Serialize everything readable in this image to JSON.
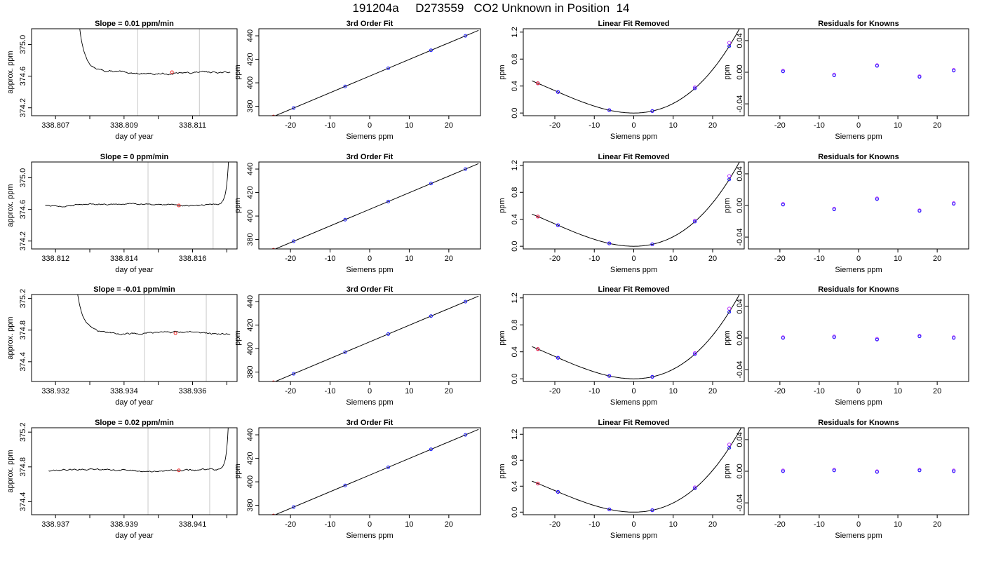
{
  "page_title": "191204a     D273559   CO2 Unknown in Position  14",
  "colors": {
    "axes": "#000000",
    "curve": "#000000",
    "known": "#1a1aff",
    "fit": "#bb33ff",
    "unknown": "#ee2222",
    "vline": "#c8c8c8"
  },
  "chart_data": [
    {
      "type": "line",
      "row": 0,
      "col": 0,
      "title": "Slope =  0.01  ppm/min",
      "xlabel": "day of year",
      "ylabel": "approx. ppm",
      "xlim": [
        338.8063,
        338.8123
      ],
      "ylim": [
        374.1,
        375.2
      ],
      "xticks": [
        "338.807",
        "338.809",
        "338.811"
      ],
      "yticks": [
        "374.2",
        "374.6",
        "375.0"
      ],
      "minor_xticks": [
        338.808,
        338.81
      ],
      "vlines": [
        338.8094,
        338.8112
      ],
      "series": {
        "start": 338.8076,
        "end": 338.8121,
        "tail": "down",
        "level": 374.64,
        "kink": [
          374.9,
          374.7
        ]
      },
      "marker": {
        "x": 338.8104,
        "y": 374.65
      }
    },
    {
      "type": "scatter",
      "row": 0,
      "col": 1,
      "title": "3rd Order Fit",
      "xlabel": "Siemens ppm",
      "ylabel": "ppm",
      "xlim": [
        -28,
        28
      ],
      "ylim": [
        372,
        446
      ],
      "xticks": [
        "-20",
        "-10",
        "0",
        "10",
        "20"
      ],
      "yticks": [
        "380",
        "400",
        "420",
        "440"
      ],
      "fit": {
        "a": 405.7,
        "b": 1.415,
        "from": -26,
        "to": 27.5
      },
      "known_x": [
        -19.2,
        -6.2,
        4.7,
        15.5,
        24.2
      ],
      "unknown_x": [
        -24.3
      ]
    },
    {
      "type": "scatter",
      "row": 0,
      "col": 2,
      "title": "Linear Fit Removed",
      "xlabel": "Siemens ppm",
      "ylabel": "ppm",
      "xlim": [
        -28,
        28
      ],
      "ylim": [
        -0.04,
        1.25
      ],
      "xticks": [
        "-20",
        "-10",
        "0",
        "10",
        "20"
      ],
      "yticks": [
        "0.0",
        "0.4",
        "0.8",
        "1.2"
      ],
      "curve": {
        "quad": 0.00122,
        "cubic": 1.95e-05,
        "from": -25.8,
        "to": 27.5
      },
      "known_x": [
        -19.2,
        -6.2,
        4.7,
        15.5,
        24.2
      ],
      "fit_x": [
        -19.2,
        -6.2,
        4.7,
        15.5,
        24.2,
        -24.3
      ],
      "fit_offsets": [
        0,
        0,
        0,
        0.015,
        0.05,
        0
      ],
      "unknown_x": [
        -24.3
      ]
    },
    {
      "type": "scatter",
      "row": 0,
      "col": 3,
      "title": "Residuals for Knowns",
      "xlabel": "Siemens ppm",
      "ylabel": "ppm",
      "xlim": [
        -28,
        28
      ],
      "ylim": [
        -0.055,
        0.055
      ],
      "xticks": [
        "-20",
        "-10",
        "0",
        "10",
        "20"
      ],
      "yticks": [
        "-0.04",
        "0.00",
        "0.04"
      ],
      "x": [
        -19.2,
        -6.2,
        4.7,
        15.5,
        24.2
      ],
      "y": [
        0.001,
        -0.004,
        0.008,
        -0.006,
        0.002
      ]
    },
    {
      "type": "line",
      "row": 1,
      "col": 0,
      "title": "Slope =  0  ppm/min",
      "xlabel": "day of year",
      "ylabel": "approx. ppm",
      "xlim": [
        338.8113,
        338.8173
      ],
      "ylim": [
        374.1,
        375.2
      ],
      "xticks": [
        "338.812",
        "338.814",
        "338.816"
      ],
      "yticks": [
        "374.2",
        "374.6",
        "375.0"
      ],
      "minor_xticks": [
        338.813,
        338.815,
        338.817
      ],
      "vlines": [
        338.8147,
        338.8166
      ],
      "series": {
        "start": 338.8117,
        "end": 338.8171,
        "tail": "up",
        "level": 374.66,
        "kink": [
          374.7,
          375.2
        ]
      },
      "marker": {
        "x": 338.8156,
        "y": 374.65
      }
    },
    {
      "type": "scatter",
      "row": 1,
      "col": 1,
      "title": "3rd Order Fit",
      "xlabel": "Siemens ppm",
      "ylabel": "ppm",
      "xlim": [
        -28,
        28
      ],
      "ylim": [
        372,
        446
      ],
      "xticks": [
        "-20",
        "-10",
        "0",
        "10",
        "20"
      ],
      "yticks": [
        "380",
        "400",
        "420",
        "440"
      ],
      "fit": {
        "a": 405.7,
        "b": 1.415,
        "from": -26,
        "to": 27.5
      },
      "known_x": [
        -19.2,
        -6.2,
        4.7,
        15.5,
        24.2
      ],
      "unknown_x": [
        -24.3
      ]
    },
    {
      "type": "scatter",
      "row": 1,
      "col": 2,
      "title": "Linear Fit Removed",
      "xlabel": "Siemens ppm",
      "ylabel": "ppm",
      "xlim": [
        -28,
        28
      ],
      "ylim": [
        -0.04,
        1.25
      ],
      "xticks": [
        "-20",
        "-10",
        "0",
        "10",
        "20"
      ],
      "yticks": [
        "0.0",
        "0.4",
        "0.8",
        "1.2"
      ],
      "curve": {
        "quad": 0.00122,
        "cubic": 1.95e-05,
        "from": -25.8,
        "to": 27.5
      },
      "known_x": [
        -19.2,
        -6.2,
        4.7,
        15.5,
        24.2
      ],
      "fit_x": [
        -19.2,
        -6.2,
        4.7,
        15.5,
        24.2,
        -24.3
      ],
      "fit_offsets": [
        0,
        0,
        0,
        0.015,
        0.05,
        0
      ],
      "unknown_x": [
        -24.3
      ]
    },
    {
      "type": "scatter",
      "row": 1,
      "col": 3,
      "title": "Residuals for Knowns",
      "xlabel": "Siemens ppm",
      "ylabel": "ppm",
      "xlim": [
        -28,
        28
      ],
      "ylim": [
        -0.055,
        0.055
      ],
      "xticks": [
        "-20",
        "-10",
        "0",
        "10",
        "20"
      ],
      "yticks": [
        "-0.04",
        "0.00",
        "0.04"
      ],
      "x": [
        -19.2,
        -6.2,
        4.7,
        15.5,
        24.2
      ],
      "y": [
        0.001,
        -0.005,
        0.008,
        -0.007,
        0.002
      ]
    },
    {
      "type": "line",
      "row": 2,
      "col": 0,
      "title": "Slope =  -0.01  ppm/min",
      "xlabel": "day of year",
      "ylabel": "approx. ppm",
      "xlim": [
        338.9313,
        338.9373
      ],
      "ylim": [
        374.15,
        375.25
      ],
      "xticks": [
        "338.932",
        "338.934",
        "338.936"
      ],
      "yticks": [
        "374.4",
        "374.8",
        "375.2"
      ],
      "minor_xticks": [
        338.933,
        338.935,
        338.937
      ],
      "vlines": [
        338.9346,
        338.9364
      ],
      "series": {
        "start": 338.9325,
        "end": 338.9371,
        "tail": "down",
        "level": 374.76,
        "kink": [
          375.1,
          374.85
        ]
      },
      "marker": {
        "x": 338.9355,
        "y": 374.76
      }
    },
    {
      "type": "scatter",
      "row": 2,
      "col": 1,
      "title": "3rd Order Fit",
      "xlabel": "Siemens ppm",
      "ylabel": "ppm",
      "xlim": [
        -28,
        28
      ],
      "ylim": [
        372,
        446
      ],
      "xticks": [
        "-20",
        "-10",
        "0",
        "10",
        "20"
      ],
      "yticks": [
        "380",
        "400",
        "420",
        "440"
      ],
      "fit": {
        "a": 405.7,
        "b": 1.415,
        "from": -26,
        "to": 27.5
      },
      "known_x": [
        -19.2,
        -6.2,
        4.7,
        15.5,
        24.2
      ],
      "unknown_x": [
        -24.3
      ]
    },
    {
      "type": "scatter",
      "row": 2,
      "col": 2,
      "title": "Linear Fit Removed",
      "xlabel": "Siemens ppm",
      "ylabel": "ppm",
      "xlim": [
        -28,
        28
      ],
      "ylim": [
        -0.04,
        1.25
      ],
      "xticks": [
        "-20",
        "-10",
        "0",
        "10",
        "20"
      ],
      "yticks": [
        "0.0",
        "0.4",
        "0.8",
        "1.2"
      ],
      "curve": {
        "quad": 0.00122,
        "cubic": 1.95e-05,
        "from": -25.8,
        "to": 27.5
      },
      "known_x": [
        -19.2,
        -6.2,
        4.7,
        15.5,
        24.2
      ],
      "fit_x": [
        -19.2,
        -6.2,
        4.7,
        15.5,
        24.2,
        -24.3
      ],
      "fit_offsets": [
        0,
        0,
        0,
        0.015,
        0.05,
        0
      ],
      "unknown_x": [
        -24.3
      ]
    },
    {
      "type": "scatter",
      "row": 2,
      "col": 3,
      "title": "Residuals for Knowns",
      "xlabel": "Siemens ppm",
      "ylabel": "ppm",
      "xlim": [
        -28,
        28
      ],
      "ylim": [
        -0.055,
        0.055
      ],
      "xticks": [
        "-20",
        "-10",
        "0",
        "10",
        "20"
      ],
      "yticks": [
        "-0.04",
        "0.00",
        "0.04"
      ],
      "x": [
        -19.2,
        -6.2,
        4.7,
        15.5,
        24.2
      ],
      "y": [
        0.0,
        0.001,
        -0.002,
        0.002,
        0.0
      ]
    },
    {
      "type": "line",
      "row": 3,
      "col": 0,
      "title": "Slope =  0.02  ppm/min",
      "xlabel": "day of year",
      "ylabel": "approx. ppm",
      "xlim": [
        338.9363,
        338.9423
      ],
      "ylim": [
        374.25,
        375.25
      ],
      "xticks": [
        "338.937",
        "338.939",
        "338.941"
      ],
      "yticks": [
        "374.4",
        "374.8",
        "375.2"
      ],
      "minor_xticks": [
        338.938,
        338.94,
        338.942
      ],
      "vlines": [
        338.9397,
        338.9415
      ],
      "series": {
        "start": 338.9368,
        "end": 338.9421,
        "tail": "up",
        "level": 374.76,
        "kink": [
          374.8,
          375.25
        ]
      },
      "marker": {
        "x": 338.9406,
        "y": 374.76
      }
    },
    {
      "type": "scatter",
      "row": 3,
      "col": 1,
      "title": "3rd Order Fit",
      "xlabel": "Siemens ppm",
      "ylabel": "ppm",
      "xlim": [
        -28,
        28
      ],
      "ylim": [
        372,
        446
      ],
      "xticks": [
        "-20",
        "-10",
        "0",
        "10",
        "20"
      ],
      "yticks": [
        "380",
        "400",
        "420",
        "440"
      ],
      "fit": {
        "a": 405.7,
        "b": 1.415,
        "from": -26,
        "to": 27.5
      },
      "known_x": [
        -19.2,
        -6.2,
        4.7,
        15.5,
        24.2
      ],
      "unknown_x": [
        -24.3
      ]
    },
    {
      "type": "scatter",
      "row": 3,
      "col": 2,
      "title": "Linear Fit Removed",
      "xlabel": "Siemens ppm",
      "ylabel": "ppm",
      "xlim": [
        -28,
        28
      ],
      "ylim": [
        -0.04,
        1.3
      ],
      "xticks": [
        "-20",
        "-10",
        "0",
        "10",
        "20"
      ],
      "yticks": [
        "0.0",
        "0.4",
        "0.8",
        "1.2"
      ],
      "curve": {
        "quad": 0.00122,
        "cubic": 1.95e-05,
        "from": -25.8,
        "to": 27.5
      },
      "known_x": [
        -19.2,
        -6.2,
        4.7,
        15.5,
        24.2
      ],
      "fit_x": [
        -19.2,
        -6.2,
        4.7,
        15.5,
        24.2,
        -24.3
      ],
      "fit_offsets": [
        0,
        0,
        0,
        0.015,
        0.05,
        0
      ],
      "unknown_x": [
        -24.3
      ]
    },
    {
      "type": "scatter",
      "row": 3,
      "col": 3,
      "title": "Residuals for Knowns",
      "xlabel": "Siemens ppm",
      "ylabel": "ppm",
      "xlim": [
        -28,
        28
      ],
      "ylim": [
        -0.055,
        0.055
      ],
      "xticks": [
        "-20",
        "-10",
        "0",
        "10",
        "20"
      ],
      "yticks": [
        "-0.04",
        "0.00",
        "0.04"
      ],
      "x": [
        -19.2,
        -6.2,
        4.7,
        15.5,
        24.2
      ],
      "y": [
        0.0,
        0.001,
        -0.001,
        0.001,
        0.0
      ]
    }
  ]
}
